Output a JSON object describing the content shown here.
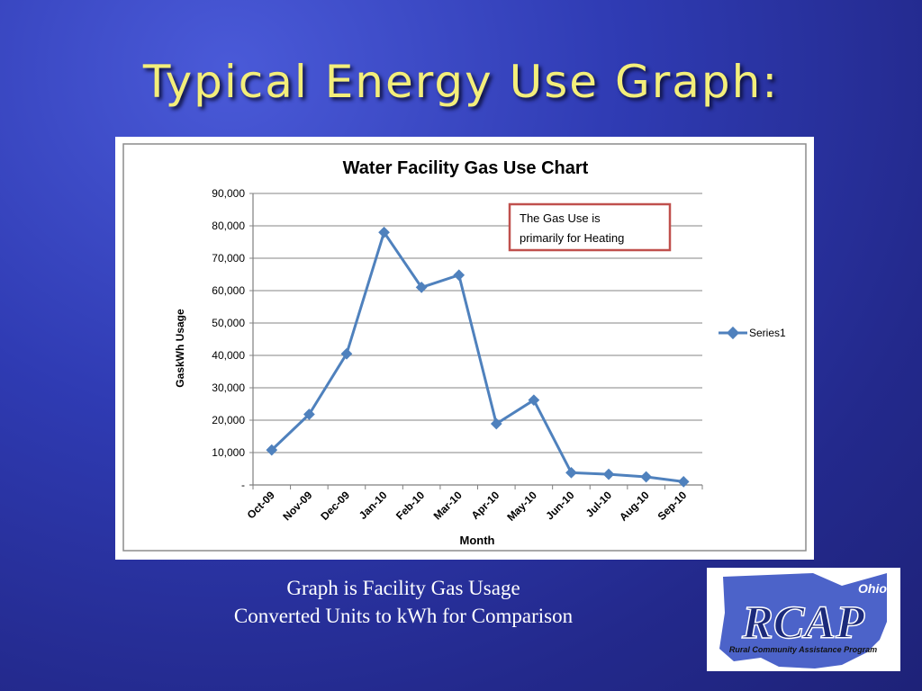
{
  "slide": {
    "title": "Typical Energy Use Graph:",
    "caption_line1": "Graph is Facility Gas Usage",
    "caption_line2": "Converted Units to kWh for Comparison"
  },
  "logo": {
    "text": "RCAP",
    "state": "Ohio",
    "subtitle": "Rural Community Assistance Program"
  },
  "chart_data": {
    "type": "line",
    "title": "Water Facility Gas Use Chart",
    "xlabel": "Month",
    "ylabel": "GaskWh Usage",
    "categories": [
      "Oct-09",
      "Nov-09",
      "Dec-09",
      "Jan-10",
      "Feb-10",
      "Mar-10",
      "Apr-10",
      "May-10",
      "Jun-10",
      "Jul-10",
      "Aug-10",
      "Sep-10"
    ],
    "series": [
      {
        "name": "Series1",
        "values": [
          10800,
          21800,
          40500,
          78000,
          61000,
          64800,
          18900,
          26200,
          3800,
          3300,
          2500,
          1000
        ]
      }
    ],
    "ylim": [
      0,
      90000
    ],
    "yticks": [
      "-",
      "10,000",
      "20,000",
      "30,000",
      "40,000",
      "50,000",
      "60,000",
      "70,000",
      "80,000",
      "90,000"
    ],
    "grid": true,
    "legend": "right",
    "line_color": "#4f81bd",
    "annotation": {
      "line1": "The Gas Use is",
      "line2": "primarily for Heating"
    }
  }
}
